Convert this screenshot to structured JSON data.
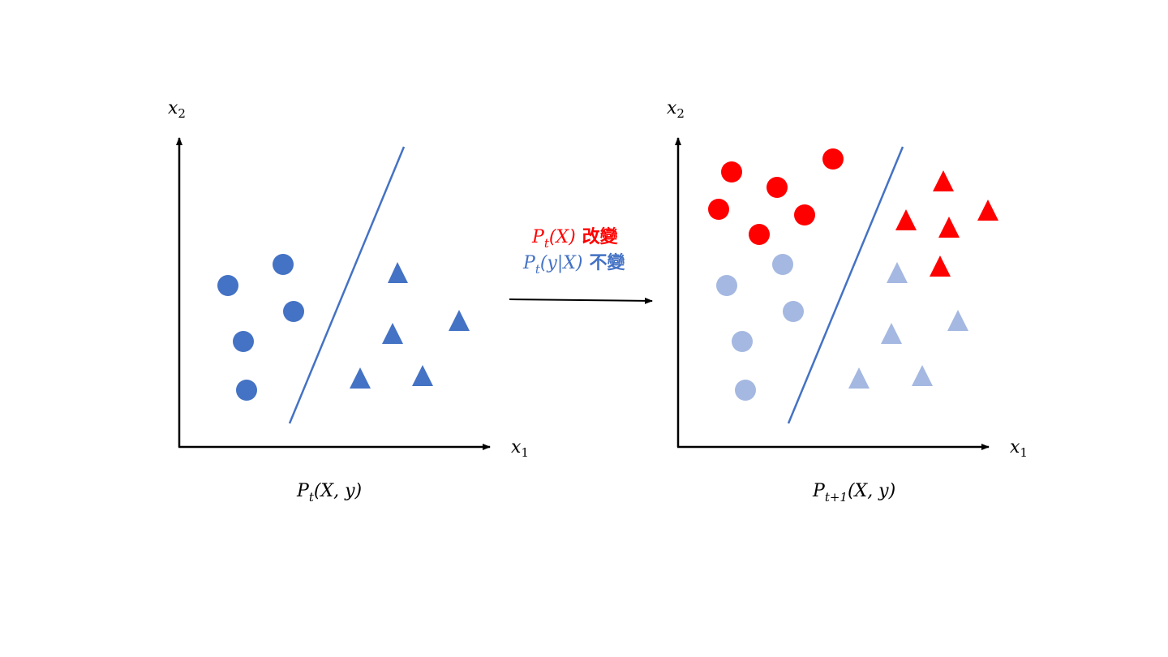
{
  "colors": {
    "blue": "#4472C4",
    "light_blue": "#A4B8E1",
    "red": "#FF0000",
    "axis": "#000000"
  },
  "arrow": {
    "line1": {
      "math": "P",
      "sub": "t",
      "paren": "(X)",
      "text": "改變",
      "color": "#FF0000"
    },
    "line2": {
      "math": "P",
      "sub": "t",
      "paren": "(y|X)",
      "text": "不變",
      "color": "#4472C4"
    }
  },
  "panels": [
    {
      "id": "left",
      "x_label": {
        "base": "x",
        "sub": "1"
      },
      "y_label": {
        "base": "x",
        "sub": "2"
      },
      "caption": {
        "base": "P",
        "sub": "t",
        "rest": "(X, y)"
      }
    },
    {
      "id": "right",
      "x_label": {
        "base": "x",
        "sub": "1"
      },
      "y_label": {
        "base": "x",
        "sub": "2"
      },
      "caption": {
        "base": "P",
        "sub": "t+1",
        "rest": "(X, y)"
      }
    }
  ]
}
